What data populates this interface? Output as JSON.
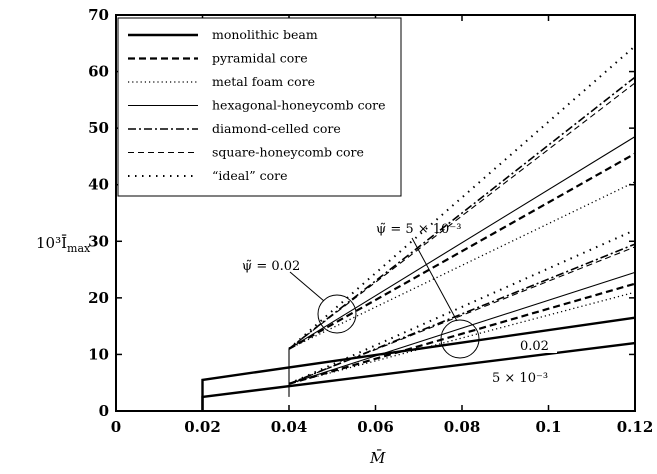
{
  "chart_data": {
    "type": "line",
    "xlabel": "M̄",
    "ylabel": "10³Ī",
    "ylabel_sub": "max",
    "xlim": [
      0,
      0.12
    ],
    "ylim": [
      0,
      70
    ],
    "x_ticks": [
      0,
      0.02,
      0.04,
      0.06,
      0.08,
      0.1,
      0.12
    ],
    "x_tick_labels": [
      "0",
      "0.02",
      "0.04",
      "0.06",
      "0.08",
      "0.1",
      "0.12"
    ],
    "y_ticks": [
      0,
      10,
      20,
      30,
      40,
      50,
      60,
      70
    ],
    "y_tick_labels": [
      "0",
      "10",
      "20",
      "30",
      "40",
      "50",
      "60",
      "70"
    ],
    "grid": false,
    "legend_position": "top-left",
    "legend": [
      {
        "label": "monolithic beam",
        "style": "solid-thick"
      },
      {
        "label": "pyramidal core",
        "style": "dashed-thick"
      },
      {
        "label": "metal foam core",
        "style": "dotted"
      },
      {
        "label": "hexagonal-honeycomb core",
        "style": "solid-thin"
      },
      {
        "label": "diamond-celled core",
        "style": "dashdot"
      },
      {
        "label": "square-honeycomb core",
        "style": "dashed-thin"
      },
      {
        "label": "“ideal” core",
        "style": "dotted-sparse"
      }
    ],
    "series": [
      {
        "style": "solid-thick",
        "x": [
          0.02,
          0.02,
          0.12
        ],
        "y": [
          0,
          2.5,
          12
        ]
      },
      {
        "style": "solid-thick",
        "x": [
          0.02,
          0.02,
          0.12
        ],
        "y": [
          0,
          5.5,
          16.5
        ]
      },
      {
        "style": "solid-thin",
        "x": [
          0.04,
          0.04
        ],
        "y": [
          2.5,
          11
        ]
      },
      {
        "style": "solid-thin",
        "x": [
          0.04,
          0.12
        ],
        "y": [
          4.8,
          24.5
        ]
      },
      {
        "style": "dashed-thick",
        "x": [
          0.04,
          0.12
        ],
        "y": [
          4.8,
          22.5
        ]
      },
      {
        "style": "dotted",
        "x": [
          0.04,
          0.12
        ],
        "y": [
          4.8,
          21
        ]
      },
      {
        "style": "dashdot",
        "x": [
          0.04,
          0.12
        ],
        "y": [
          4.8,
          29.5
        ]
      },
      {
        "style": "dashed-thin",
        "x": [
          0.04,
          0.12
        ],
        "y": [
          4.8,
          29
        ]
      },
      {
        "style": "dotted-sparse",
        "x": [
          0.04,
          0.12
        ],
        "y": [
          4.8,
          32
        ]
      },
      {
        "style": "solid-thin",
        "x": [
          0.04,
          0.12
        ],
        "y": [
          11,
          48.5
        ]
      },
      {
        "style": "dashed-thick",
        "x": [
          0.04,
          0.12
        ],
        "y": [
          11,
          45.5
        ]
      },
      {
        "style": "dotted",
        "x": [
          0.04,
          0.12
        ],
        "y": [
          11,
          40.5
        ]
      },
      {
        "style": "dashdot",
        "x": [
          0.04,
          0.12
        ],
        "y": [
          11,
          59
        ]
      },
      {
        "style": "dashed-thin",
        "x": [
          0.04,
          0.12
        ],
        "y": [
          11,
          58
        ]
      },
      {
        "style": "dotted-sparse",
        "x": [
          0.04,
          0.12
        ],
        "y": [
          11,
          64.5
        ]
      }
    ],
    "annotations": {
      "psi_high": {
        "text_prefix": "ψ̃ = ",
        "text_value": "0.02",
        "x": 0.0435,
        "y": 25
      },
      "psi_low": {
        "text_prefix": "ψ̃ = ",
        "text_value": "5 × 10⁻³",
        "x": 0.072,
        "y": 35
      },
      "label_002": {
        "text": "0.02",
        "x": 0.1005,
        "y": 12.3
      },
      "label_5e3": {
        "text": "5 × 10⁻³",
        "x": 0.095,
        "y": 5.5
      }
    }
  }
}
